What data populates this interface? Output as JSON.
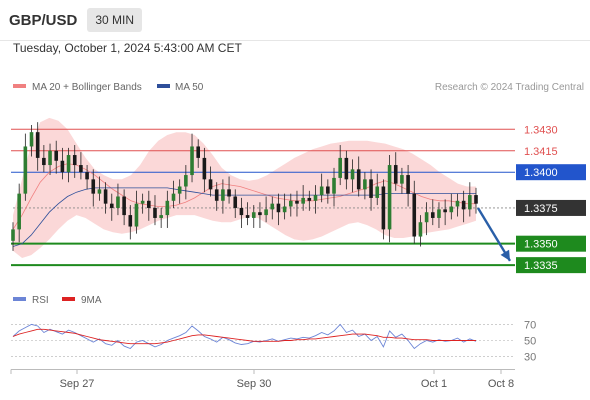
{
  "header": {
    "symbol": "GBP/USD",
    "timeframe": "30 MIN"
  },
  "datetime": "Tuesday, October 1, 2024 5:43:00 AM CET",
  "legend": {
    "ma20_label": "MA 20 + Bollinger Bands",
    "ma50_label": "MA 50",
    "ma20_color": "#f08080",
    "ma50_color": "#2e4f9a",
    "credit": "Research © 2024 Trading Central"
  },
  "rsi_legend": {
    "rsi_label": "RSI",
    "ma9_label": "9MA",
    "rsi_color": "#6c85d6",
    "ma9_color": "#dd2222"
  },
  "colors": {
    "resistance": "#e05050",
    "support": "#1e8a1e",
    "pivot": "#2255cc",
    "current": "#333333",
    "arrow": "#2a5fa8",
    "bands": "#fbd4d4",
    "candle": "#2e7d32"
  },
  "chart_data": [
    {
      "type": "candlestick",
      "title": "",
      "x_ticks": [
        "Sep 27",
        "Sep 30",
        "Oct 1",
        "Oct 8"
      ],
      "ylim": [
        1.3326,
        1.3447
      ],
      "levels": [
        {
          "value": 1.343,
          "label": "1.3430",
          "kind": "resistance"
        },
        {
          "value": 1.3415,
          "label": "1.3415",
          "kind": "resistance"
        },
        {
          "value": 1.34,
          "label": "1.3400",
          "kind": "pivot"
        },
        {
          "value": 1.3375,
          "label": "1.3375",
          "kind": "current"
        },
        {
          "value": 1.335,
          "label": "1.3350",
          "kind": "support"
        },
        {
          "value": 1.3335,
          "label": "1.3335",
          "kind": "support"
        }
      ],
      "current_price": 1.3375,
      "forecast": {
        "from": 1.3375,
        "to": 1.3338,
        "direction": "down"
      },
      "close": [
        1.336,
        1.3385,
        1.3418,
        1.3428,
        1.341,
        1.3405,
        1.3415,
        1.3408,
        1.34,
        1.3412,
        1.3405,
        1.34,
        1.3395,
        1.3385,
        1.3388,
        1.3378,
        1.3375,
        1.3383,
        1.337,
        1.3362,
        1.3378,
        1.338,
        1.3375,
        1.3368,
        1.337,
        1.338,
        1.3385,
        1.339,
        1.3398,
        1.3418,
        1.341,
        1.3395,
        1.3388,
        1.338,
        1.3388,
        1.3383,
        1.3375,
        1.337,
        1.3368,
        1.3372,
        1.337,
        1.3374,
        1.3378,
        1.3372,
        1.3376,
        1.338,
        1.3378,
        1.3382,
        1.338,
        1.3384,
        1.339,
        1.3385,
        1.3396,
        1.341,
        1.3395,
        1.3402,
        1.3388,
        1.3395,
        1.3382,
        1.339,
        1.336,
        1.3405,
        1.3392,
        1.3398,
        1.3385,
        1.3355,
        1.3365,
        1.3372,
        1.3368,
        1.3374,
        1.3372,
        1.3376,
        1.338,
        1.3374,
        1.3384,
        1.3378
      ],
      "ma20": [
        1.336,
        1.337,
        1.3382,
        1.3393,
        1.34,
        1.3404,
        1.3406,
        1.3405,
        1.3402,
        1.3398,
        1.3393,
        1.3388,
        1.3384,
        1.338,
        1.3378,
        1.3377,
        1.3376,
        1.3376,
        1.3377,
        1.3379,
        1.3382,
        1.3386,
        1.339,
        1.3392,
        1.3391,
        1.339,
        1.3388,
        1.3386,
        1.3384,
        1.3382,
        1.3381,
        1.338,
        1.338,
        1.338,
        1.3381,
        1.3382,
        1.3383,
        1.3385,
        1.3387,
        1.3389,
        1.3392,
        1.3394,
        1.3392,
        1.3389,
        1.3386,
        1.3383,
        1.3381,
        1.338,
        1.338,
        1.3379,
        1.3378,
        1.3378
      ],
      "ma20_upper": [
        1.337,
        1.3395,
        1.342,
        1.3435,
        1.3438,
        1.3436,
        1.343,
        1.342,
        1.341,
        1.3402,
        1.3398,
        1.3395,
        1.3395,
        1.3398,
        1.3405,
        1.3415,
        1.3422,
        1.3426,
        1.3428,
        1.3428,
        1.3426,
        1.342,
        1.3412,
        1.3403,
        1.3398,
        1.3395,
        1.3394,
        1.3395,
        1.3398,
        1.3402,
        1.3406,
        1.341,
        1.3413,
        1.3416,
        1.3418,
        1.342,
        1.3421,
        1.3422,
        1.3422,
        1.3422,
        1.3421,
        1.342,
        1.3418,
        1.3416,
        1.3413,
        1.3409,
        1.3405,
        1.34,
        1.3396,
        1.3392,
        1.339,
        1.339
      ],
      "ma20_lower": [
        1.3345,
        1.334,
        1.3342,
        1.3347,
        1.3353,
        1.336,
        1.3366,
        1.337,
        1.3368,
        1.3364,
        1.336,
        1.3358,
        1.3357,
        1.3358,
        1.336,
        1.3363,
        1.3366,
        1.3368,
        1.337,
        1.337,
        1.337,
        1.3368,
        1.3366,
        1.3365,
        1.3365,
        1.3367,
        1.3369,
        1.3368,
        1.3364,
        1.336,
        1.3356,
        1.3353,
        1.3352,
        1.3353,
        1.3355,
        1.3358,
        1.3361,
        1.3364,
        1.3365,
        1.3363,
        1.336,
        1.3356,
        1.3354,
        1.3354,
        1.3355,
        1.3357,
        1.3358,
        1.3359,
        1.336,
        1.3362,
        1.3364,
        1.3366
      ],
      "ma50": [
        1.3348,
        1.335,
        1.3356,
        1.3364,
        1.3372,
        1.3378,
        1.3383,
        1.3386,
        1.3388,
        1.3389,
        1.3389,
        1.3389,
        1.3389,
        1.3389,
        1.3389,
        1.3389,
        1.3389,
        1.3389,
        1.3388,
        1.3387,
        1.3386,
        1.3385,
        1.3384,
        1.3384,
        1.3384,
        1.3384,
        1.3384,
        1.3384,
        1.3384,
        1.3384,
        1.3384,
        1.3384,
        1.3384,
        1.3384,
        1.3384,
        1.3384,
        1.3384,
        1.3384,
        1.3384,
        1.3384,
        1.3384,
        1.3385,
        1.3385,
        1.3385,
        1.3385,
        1.3385,
        1.3385,
        1.3385,
        1.3385,
        1.3385,
        1.3385,
        1.3385
      ]
    },
    {
      "type": "line",
      "title": "",
      "ylim": [
        22,
        78
      ],
      "y_ticks": [
        70,
        50,
        30
      ],
      "series": [
        {
          "name": "RSI",
          "values": [
            55,
            62,
            66,
            70,
            68,
            60,
            64,
            61,
            58,
            63,
            60,
            56,
            52,
            48,
            52,
            46,
            44,
            50,
            43,
            40,
            48,
            50,
            46,
            42,
            45,
            50,
            53,
            56,
            60,
            68,
            62,
            55,
            52,
            48,
            54,
            51,
            47,
            45,
            46,
            49,
            48,
            50,
            52,
            49,
            51,
            53,
            52,
            54,
            53,
            56,
            60,
            57,
            62,
            70,
            60,
            63,
            55,
            58,
            50,
            55,
            42,
            62,
            54,
            58,
            50,
            40,
            46,
            50,
            48,
            51,
            49,
            50,
            53,
            48,
            52,
            49
          ]
        },
        {
          "name": "9MA",
          "values": [
            55,
            58,
            60,
            62,
            64,
            64,
            63,
            62,
            61,
            60,
            59,
            57,
            55,
            53,
            51,
            50,
            49,
            48,
            47,
            46,
            46,
            46,
            46,
            46,
            47,
            48,
            50,
            52,
            54,
            56,
            57,
            57,
            56,
            55,
            54,
            53,
            52,
            51,
            50,
            49,
            49,
            49,
            49,
            49,
            50,
            50,
            51,
            51,
            52,
            52,
            53,
            54,
            55,
            56,
            57,
            58,
            58,
            58,
            57,
            56,
            54,
            54,
            53,
            53,
            52,
            51,
            51,
            51,
            50,
            50,
            50,
            50,
            50,
            50,
            50,
            50
          ]
        }
      ]
    }
  ]
}
